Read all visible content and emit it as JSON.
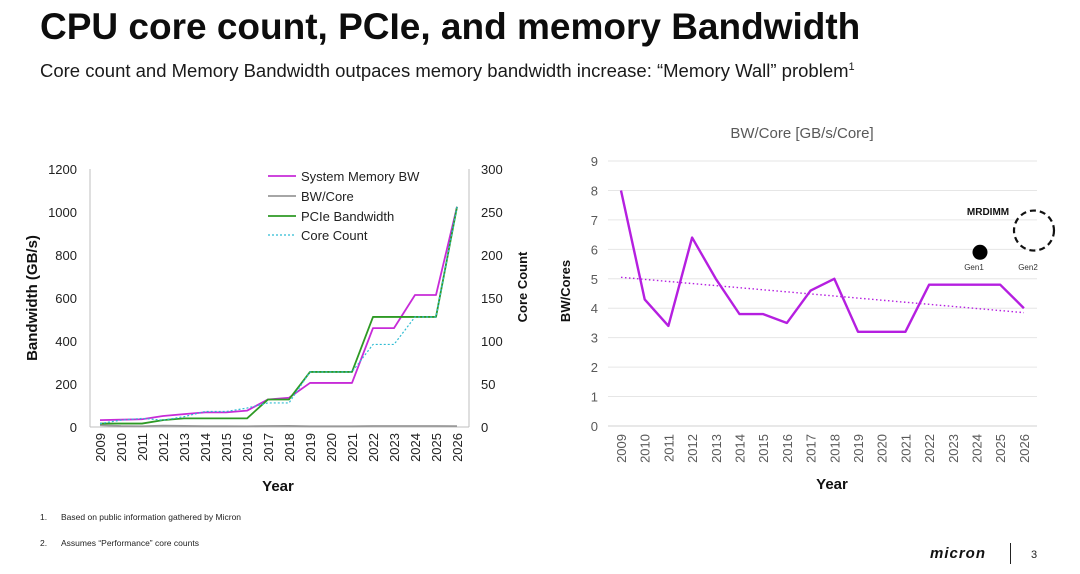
{
  "slide": {
    "title": "CPU core count, PCIe, and memory Bandwidth",
    "subtitle": "Core count and Memory Bandwidth outpaces memory bandwidth increase: “Memory Wall” problem",
    "subtitle_sup": "1",
    "footnotes": [
      {
        "num": "1.",
        "text": "Based on public information gathered by Micron"
      },
      {
        "num": "2.",
        "text": "Assumes “Performance” core counts"
      }
    ],
    "logo": "micron",
    "page_number": "3"
  },
  "chart_data": [
    {
      "type": "line",
      "title": "",
      "xlabel": "Year",
      "ylabel": "Bandwidth (GB/s)",
      "y2label": "Core Count",
      "ylim": [
        0,
        1200
      ],
      "y2lim": [
        0,
        300
      ],
      "yticks": [
        0,
        200,
        400,
        600,
        800,
        1000,
        1200
      ],
      "y2ticks": [
        0,
        50,
        100,
        150,
        200,
        250,
        300
      ],
      "categories": [
        "2009",
        "2010",
        "2011",
        "2012",
        "2013",
        "2014",
        "2015",
        "2016",
        "2017",
        "2018",
        "2019",
        "2020",
        "2021",
        "2022",
        "2023",
        "2024",
        "2025",
        "2026"
      ],
      "legend_position": "top-left",
      "series": [
        {
          "name": "System Memory BW",
          "axis": "left",
          "color": "#c72bd8",
          "dash": "",
          "values": [
            32,
            34,
            36,
            51,
            60,
            68,
            68,
            76,
            128,
            136,
            205,
            205,
            205,
            460,
            460,
            614,
            614,
            1024
          ]
        },
        {
          "name": "BW/Core",
          "axis": "left",
          "color": "#999999",
          "dash": "",
          "values": [
            8,
            4.3,
            3.4,
            6.4,
            5,
            3.8,
            3.8,
            3.5,
            4.6,
            5,
            3.2,
            3.2,
            3.2,
            4.8,
            4.8,
            4.8,
            4.8,
            4
          ]
        },
        {
          "name": "PCIe Bandwidth",
          "axis": "left",
          "color": "#2e9a24",
          "dash": "",
          "values": [
            16,
            16,
            16,
            32,
            40,
            40,
            40,
            40,
            128,
            128,
            256,
            256,
            256,
            512,
            512,
            512,
            512,
            1024
          ]
        },
        {
          "name": "Core Count",
          "axis": "right",
          "color": "#2fbcd3",
          "dash": "2,2",
          "values": [
            4,
            8,
            10,
            8,
            12,
            18,
            18,
            22,
            28,
            28,
            64,
            64,
            64,
            96,
            96,
            128,
            128,
            256
          ]
        }
      ]
    },
    {
      "type": "line",
      "title": "BW/Core [GB/s/Core]",
      "xlabel": "Year",
      "ylabel": "BW/Cores",
      "ylim": [
        0,
        9
      ],
      "yticks": [
        0,
        1,
        2,
        3,
        4,
        5,
        6,
        7,
        8,
        9
      ],
      "grid": true,
      "categories": [
        "2009",
        "2010",
        "2011",
        "2012",
        "2013",
        "2014",
        "2015",
        "2016",
        "2017",
        "2018",
        "2019",
        "2020",
        "2021",
        "2022",
        "2023",
        "2024",
        "2025",
        "2026"
      ],
      "series": [
        {
          "name": "BW/Core",
          "color": "#b51fe0",
          "values": [
            8,
            4.3,
            3.4,
            6.4,
            5,
            3.8,
            3.8,
            3.5,
            4.6,
            5,
            3.2,
            3.2,
            3.2,
            4.8,
            4.8,
            4.8,
            4.8,
            4
          ]
        }
      ],
      "trendline": {
        "start": 5.05,
        "end": 3.85,
        "color": "#b51fe0",
        "style": "dotted"
      },
      "annotations": {
        "label": "MRDIMM",
        "gen1": {
          "label": "Gen1",
          "year": "2024",
          "value": 5.9
        },
        "gen2": {
          "label": "Gen2",
          "year": "2026",
          "value": 6.4
        }
      }
    }
  ]
}
